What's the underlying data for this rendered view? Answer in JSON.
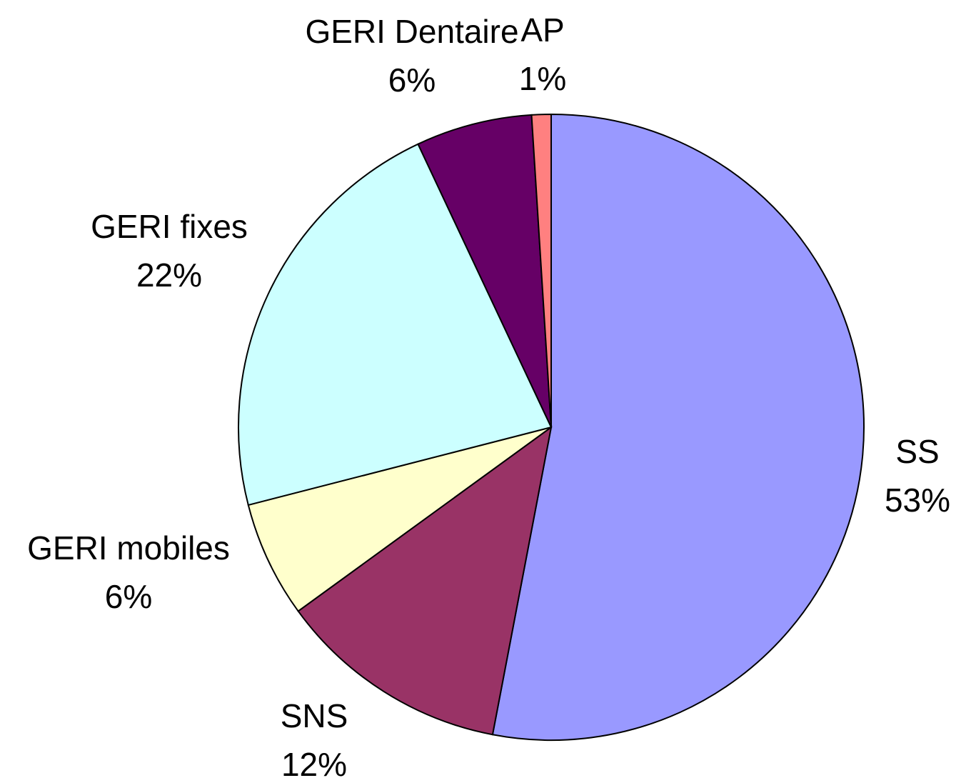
{
  "chart_data": {
    "type": "pie",
    "categories": [
      "SS",
      "SNS",
      "GERI mobiles",
      "GERI fixes",
      "GERI Dentaire",
      "AP"
    ],
    "values": [
      53,
      12,
      6,
      22,
      6,
      1
    ],
    "value_labels": [
      "53%",
      "12%",
      "6%",
      "22%",
      "6%",
      "1%"
    ],
    "colors": [
      "#9999ff",
      "#993366",
      "#ffffcc",
      "#ccffff",
      "#660066",
      "#ff8080"
    ]
  }
}
